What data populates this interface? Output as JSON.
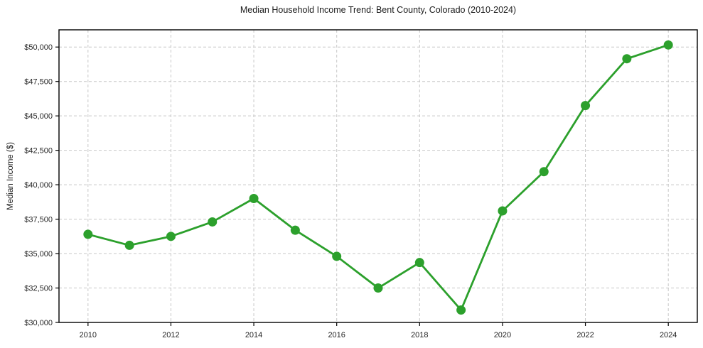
{
  "figure": {
    "title": "Median Household Income Trend: Bent County, Colorado (2010-2024)",
    "ylabel": "Median Income ($)"
  },
  "chart_data": {
    "type": "line",
    "title": "Median Household Income Trend: Bent County, Colorado (2010-2024)",
    "xlabel": "",
    "ylabel": "Median Income ($)",
    "series_name": "Median Household Income",
    "x": [
      2010,
      2011,
      2012,
      2013,
      2014,
      2015,
      2016,
      2017,
      2018,
      2019,
      2020,
      2021,
      2022,
      2023,
      2024
    ],
    "values": [
      36400,
      35600,
      36250,
      37300,
      39000,
      36700,
      34800,
      32500,
      34350,
      30900,
      38100,
      40950,
      45750,
      49150,
      50150
    ],
    "x_tick_values": [
      2010,
      2012,
      2014,
      2016,
      2018,
      2020,
      2022,
      2024
    ],
    "x_tick_labels": [
      "2010",
      "2012",
      "2014",
      "2016",
      "2018",
      "2020",
      "2022",
      "2024"
    ],
    "y_tick_values": [
      30000,
      32500,
      35000,
      37500,
      40000,
      42500,
      45000,
      47500,
      50000
    ],
    "y_tick_labels": [
      "$30,000",
      "$32,500",
      "$35,000",
      "$37,500",
      "$40,000",
      "$42,500",
      "$45,000",
      "$47,500",
      "$50,000"
    ],
    "xlim": [
      2009.3,
      2024.7
    ],
    "ylim": [
      30000,
      51250
    ],
    "grid": true,
    "grid_style": "dashed",
    "legend": "none",
    "line_color": "#2ca02c",
    "marker": "circle",
    "marker_color": "#2ca02c",
    "grid_color": "#c7c7c7",
    "axis_color": "#000000",
    "tick_label_color": "#262626",
    "background": "#ffffff"
  }
}
